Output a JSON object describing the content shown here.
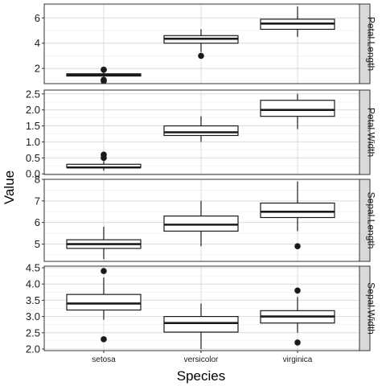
{
  "chart_data": {
    "type": "boxplot",
    "xlabel": "Species",
    "ylabel": "Value",
    "categories": [
      "setosa",
      "versicolor",
      "virginica"
    ],
    "grid": true,
    "panels": [
      {
        "name": "Petal.Length",
        "ylim": [
          0.8,
          7.1
        ],
        "yticks": [
          2,
          4,
          6
        ],
        "boxes": [
          {
            "category": "setosa",
            "whisker_low": 1.1,
            "q1": 1.4,
            "median": 1.5,
            "q3": 1.58,
            "whisker_high": 1.7,
            "outliers": [
              1.0,
              1.1,
              1.9,
              1.9
            ]
          },
          {
            "category": "versicolor",
            "whisker_low": 3.3,
            "q1": 4.0,
            "median": 4.35,
            "q3": 4.6,
            "whisker_high": 5.1,
            "outliers": [
              3.0
            ]
          },
          {
            "category": "virginica",
            "whisker_low": 4.5,
            "q1": 5.1,
            "median": 5.55,
            "q3": 5.9,
            "whisker_high": 6.9,
            "outliers": []
          }
        ]
      },
      {
        "name": "Petal.Width",
        "ylim": [
          -0.02,
          2.62
        ],
        "yticks": [
          0.0,
          0.5,
          1.0,
          1.5,
          2.0,
          2.5
        ],
        "boxes": [
          {
            "category": "setosa",
            "whisker_low": 0.1,
            "q1": 0.2,
            "median": 0.2,
            "q3": 0.3,
            "whisker_high": 0.4,
            "outliers": [
              0.5,
              0.6
            ]
          },
          {
            "category": "versicolor",
            "whisker_low": 1.0,
            "q1": 1.2,
            "median": 1.3,
            "q3": 1.5,
            "whisker_high": 1.8,
            "outliers": []
          },
          {
            "category": "virginica",
            "whisker_low": 1.4,
            "q1": 1.8,
            "median": 2.0,
            "q3": 2.3,
            "whisker_high": 2.5,
            "outliers": []
          }
        ]
      },
      {
        "name": "Sepal.Length",
        "ylim": [
          4.2,
          8.0
        ],
        "yticks": [
          5,
          6,
          7,
          8
        ],
        "boxes": [
          {
            "category": "setosa",
            "whisker_low": 4.3,
            "q1": 4.8,
            "median": 5.0,
            "q3": 5.2,
            "whisker_high": 5.8,
            "outliers": []
          },
          {
            "category": "versicolor",
            "whisker_low": 4.9,
            "q1": 5.6,
            "median": 5.9,
            "q3": 6.3,
            "whisker_high": 7.0,
            "outliers": []
          },
          {
            "category": "virginica",
            "whisker_low": 5.6,
            "q1": 6.23,
            "median": 6.5,
            "q3": 6.9,
            "whisker_high": 7.9,
            "outliers": [
              4.9
            ]
          }
        ]
      },
      {
        "name": "Sepal.Width",
        "ylim": [
          1.95,
          4.55
        ],
        "yticks": [
          2.0,
          2.5,
          3.0,
          3.5,
          4.0,
          4.5
        ],
        "boxes": [
          {
            "category": "setosa",
            "whisker_low": 2.9,
            "q1": 3.2,
            "median": 3.4,
            "q3": 3.68,
            "whisker_high": 4.2,
            "outliers": [
              4.4,
              2.3
            ]
          },
          {
            "category": "versicolor",
            "whisker_low": 2.0,
            "q1": 2.52,
            "median": 2.8,
            "q3": 3.0,
            "whisker_high": 3.4,
            "outliers": []
          },
          {
            "category": "virginica",
            "whisker_low": 2.5,
            "q1": 2.8,
            "median": 3.0,
            "q3": 3.18,
            "whisker_high": 3.6,
            "outliers": [
              3.8,
              2.2
            ]
          }
        ]
      }
    ]
  }
}
